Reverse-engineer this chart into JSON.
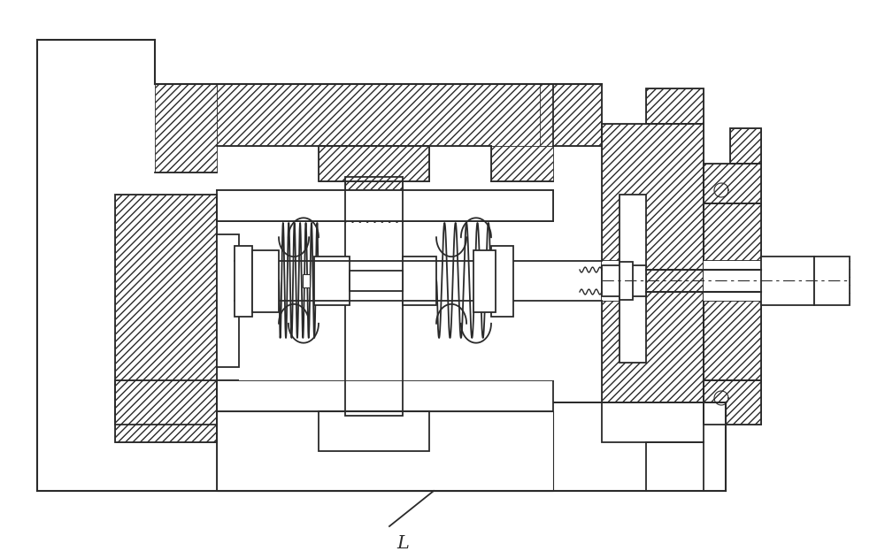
{
  "bg_color": "#ffffff",
  "lc": "#2a2a2a",
  "lw": 1.3,
  "label_L": "L",
  "fig_width": 10.0,
  "fig_height": 6.32,
  "dpi": 100
}
